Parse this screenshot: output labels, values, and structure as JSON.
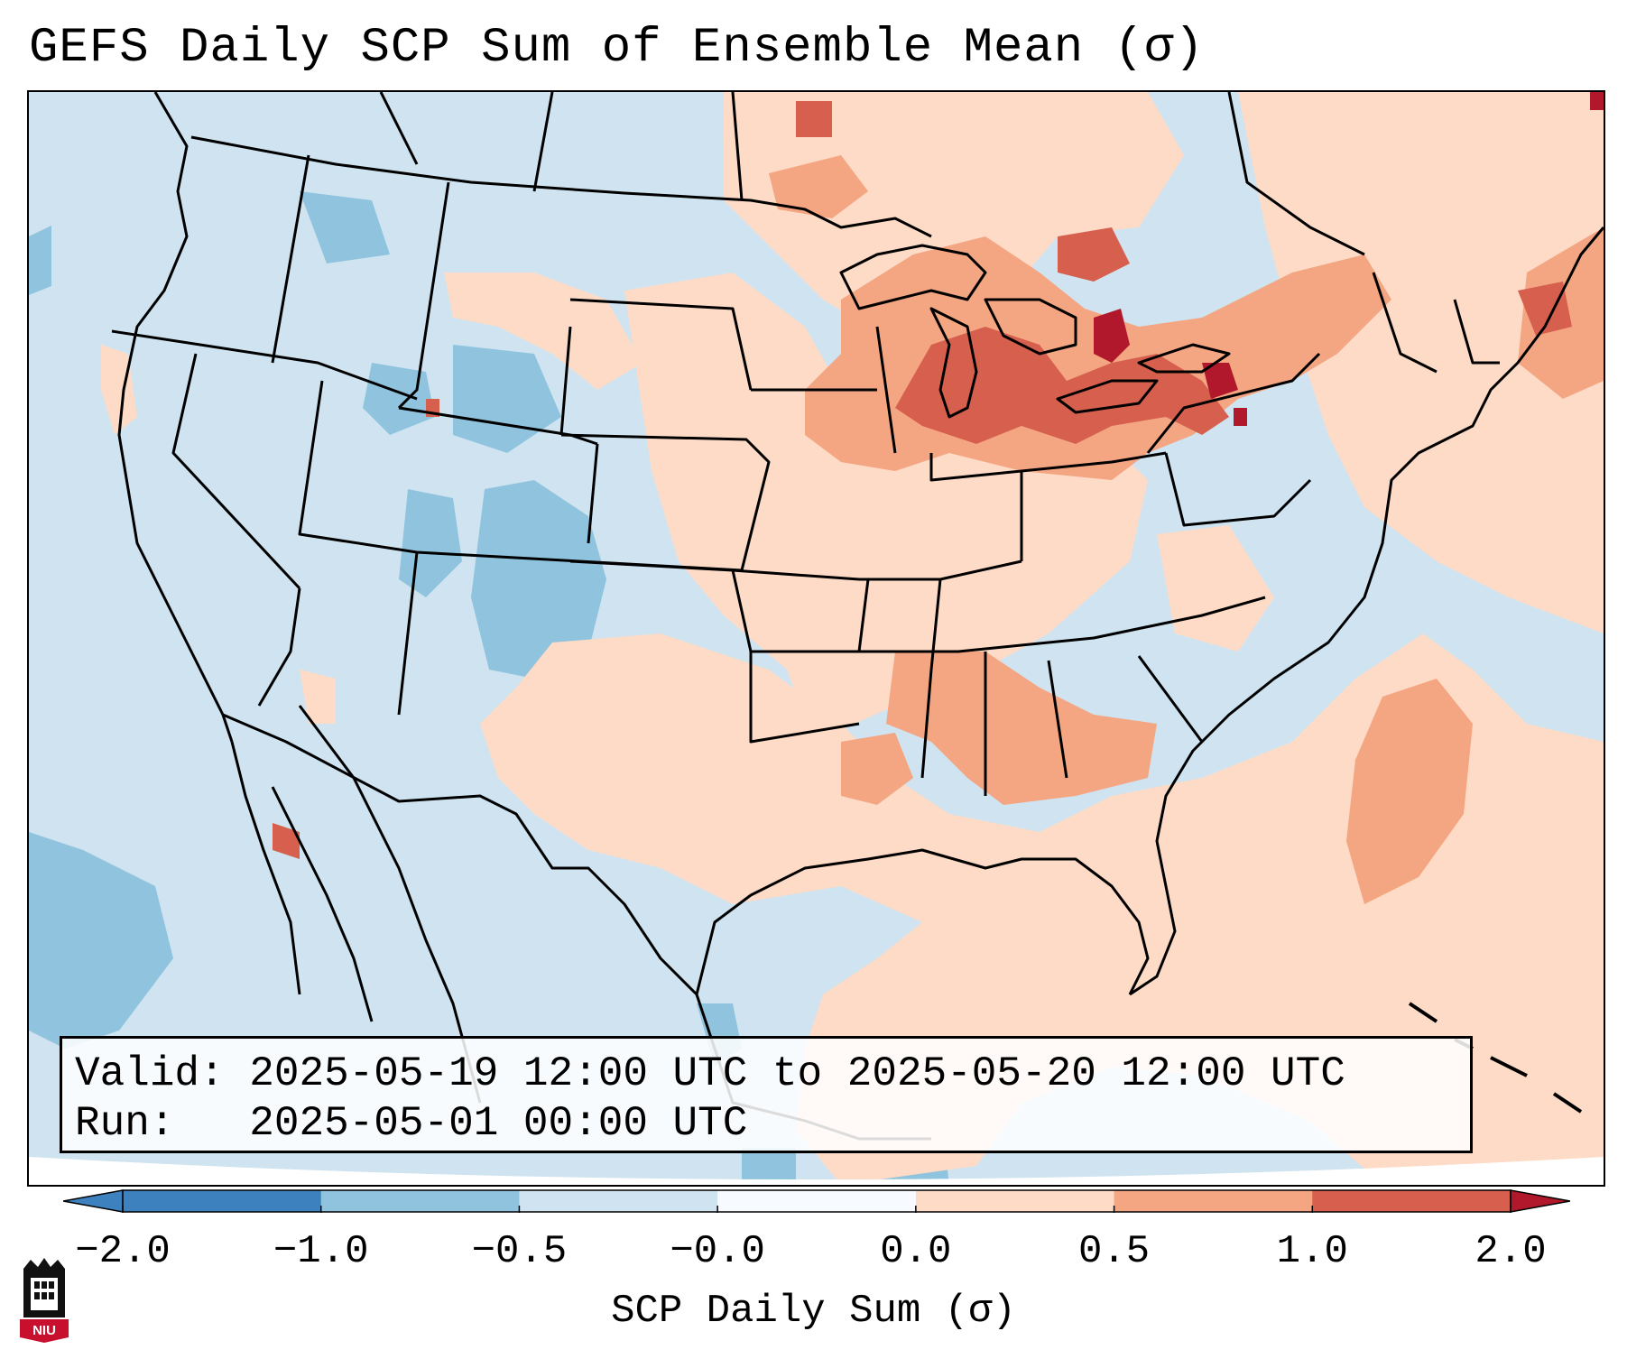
{
  "title": "GEFS Daily SCP Sum of Ensemble Mean (σ)",
  "info": {
    "valid_label": "Valid:",
    "valid_value": "2025-05-19 12:00 UTC to 2025-05-20 12:00 UTC",
    "run_label": "Run:",
    "run_value": "2025-05-01 00:00 UTC"
  },
  "colorbar": {
    "label": "SCP Daily Sum (σ)",
    "ticks": [
      "−2.0",
      "−1.0",
      "−0.5",
      "−0.0",
      "0.0",
      "0.5",
      "1.0",
      "2.0"
    ],
    "colors": [
      "#3d82be",
      "#8fc3de",
      "#cfe4f0",
      "#f7fbff",
      "#fddbc7",
      "#f4a582",
      "#d6604d",
      "#b2182b"
    ],
    "extend": "both"
  },
  "map": {
    "projection": "Lambert conformal over the contiguous United States",
    "background_color": "#cfe4f0",
    "anomaly_regions": [
      "Great Lakes / Michigan (strong positive)",
      "Lower Mississippi valley (positive)",
      "Southeast US coast and Atlantic (positive)",
      "Southern Plains and Texas (weak positive)",
      "Colorado / Utah / Wyoming (negative)",
      "Eastern Pacific (negative)"
    ]
  },
  "logo": {
    "text": "NIU",
    "color": "#c8102e"
  }
}
